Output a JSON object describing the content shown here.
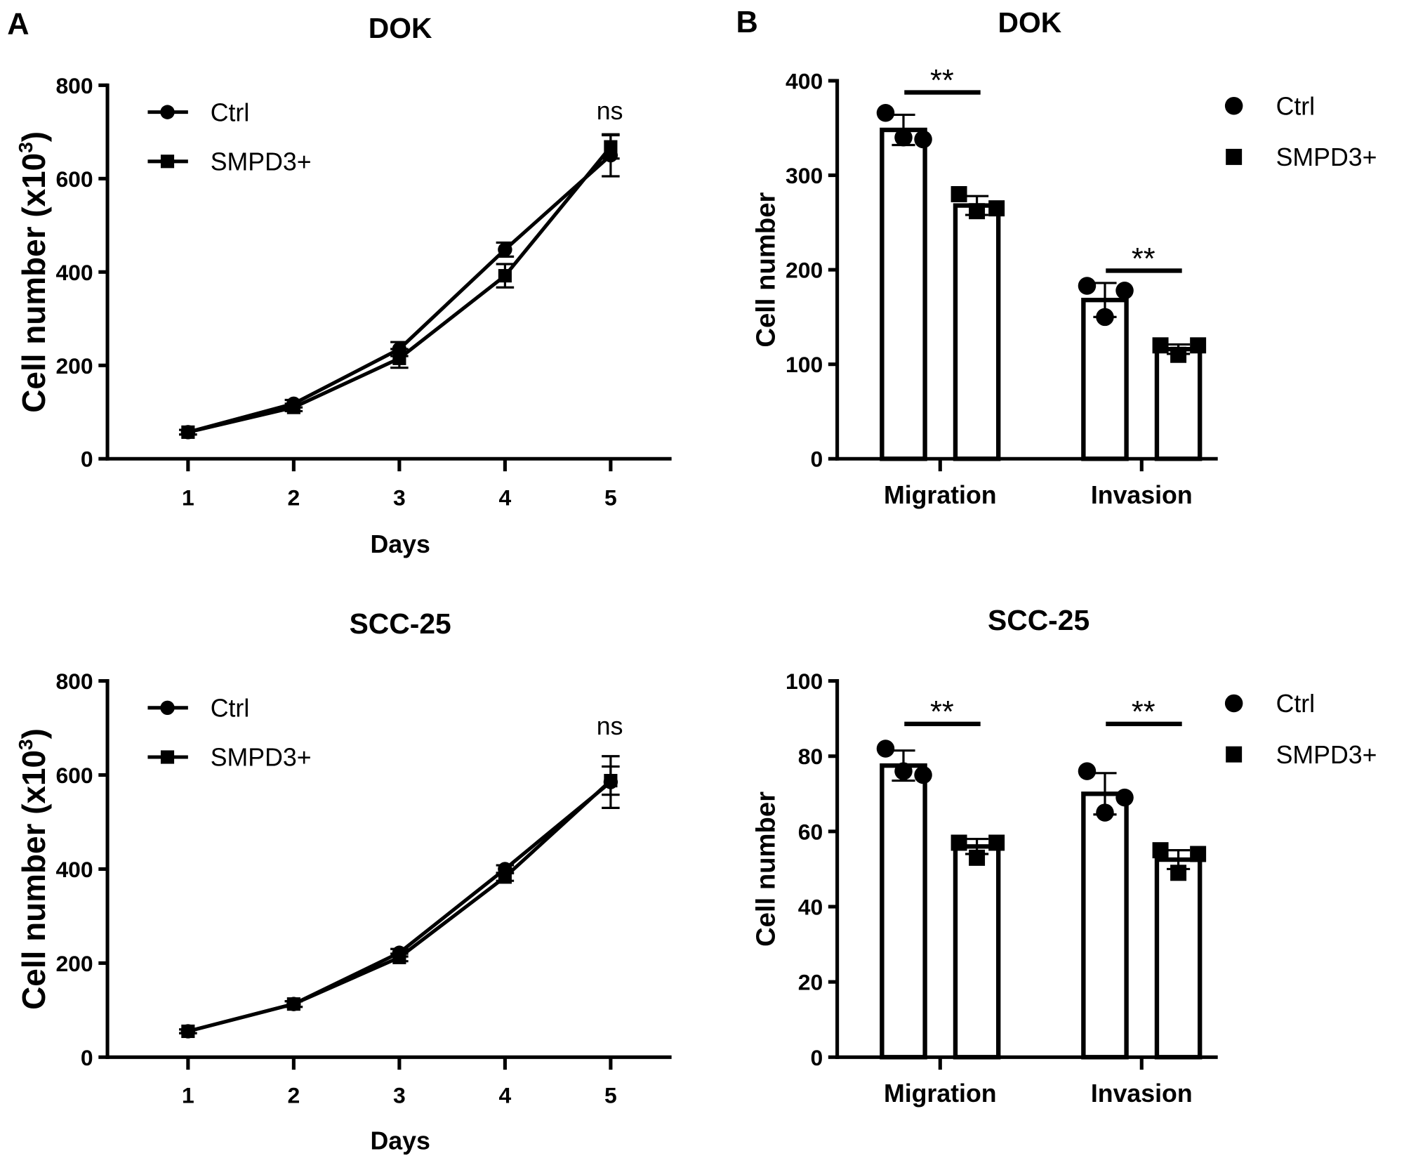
{
  "panel_labels": [
    "A",
    "B"
  ],
  "chart_data": [
    {
      "type": "line",
      "panel": "A",
      "title": "DOK",
      "xlabel": "Days",
      "ylabel": "Cell number (x10",
      "ylabel_sup": "3",
      "ylabel_end": ")",
      "x": [
        1,
        2,
        3,
        4,
        5
      ],
      "ylim": [
        0,
        800
      ],
      "yticks": [
        0,
        200,
        400,
        600,
        800
      ],
      "annotation": "ns",
      "legend_position": "top-left",
      "series": [
        {
          "name": "Ctrl",
          "marker": "circle",
          "values": [
            57,
            118,
            235,
            448,
            650
          ],
          "error": [
            5,
            8,
            15,
            15,
            45
          ]
        },
        {
          "name": "SMPD3+",
          "marker": "square",
          "values": [
            57,
            110,
            215,
            392,
            668
          ],
          "error": [
            5,
            8,
            20,
            25,
            25
          ]
        }
      ]
    },
    {
      "type": "bar",
      "panel": "B",
      "title": "DOK",
      "xlabel": "",
      "ylabel": "Cell number",
      "categories": [
        "Migration",
        "Invasion"
      ],
      "ylim": [
        0,
        400
      ],
      "yticks": [
        0,
        100,
        200,
        300,
        400
      ],
      "significance": [
        "**",
        "**"
      ],
      "legend_position": "right",
      "series": [
        {
          "name": "Ctrl",
          "marker": "circle",
          "values": [
            348,
            168
          ],
          "error": [
            16,
            18
          ],
          "points": [
            [
              366,
              340,
              338
            ],
            [
              183,
              150,
              178
            ]
          ]
        },
        {
          "name": "SMPD3+",
          "marker": "square",
          "values": [
            268,
            116
          ],
          "error": [
            10,
            5
          ],
          "points": [
            [
              280,
              262,
              265
            ],
            [
              120,
              110,
              120
            ]
          ]
        }
      ]
    },
    {
      "type": "line",
      "panel": "",
      "title": "SCC-25",
      "xlabel": "Days",
      "ylabel": "Cell number (x10",
      "ylabel_sup": "3",
      "ylabel_end": ")",
      "x": [
        1,
        2,
        3,
        4,
        5
      ],
      "ylim": [
        0,
        800
      ],
      "yticks": [
        0,
        200,
        400,
        600,
        800
      ],
      "annotation": "ns",
      "legend_position": "top-left",
      "series": [
        {
          "name": "Ctrl",
          "marker": "circle",
          "values": [
            55,
            113,
            222,
            400,
            585
          ],
          "error": [
            4,
            6,
            8,
            8,
            55
          ]
        },
        {
          "name": "SMPD3+",
          "marker": "square",
          "values": [
            55,
            113,
            212,
            383,
            588
          ],
          "error": [
            4,
            6,
            8,
            8,
            30
          ]
        }
      ]
    },
    {
      "type": "bar",
      "panel": "",
      "title": "SCC-25",
      "xlabel": "",
      "ylabel": "Cell number",
      "categories": [
        "Migration",
        "Invasion"
      ],
      "ylim": [
        0,
        100
      ],
      "yticks": [
        0,
        20,
        40,
        60,
        80,
        100
      ],
      "significance": [
        "**",
        "**"
      ],
      "legend_position": "right",
      "series": [
        {
          "name": "Ctrl",
          "marker": "circle",
          "values": [
            77.5,
            70
          ],
          "error": [
            4,
            5.5
          ],
          "points": [
            [
              82,
              76,
              75
            ],
            [
              76,
              65,
              69
            ]
          ]
        },
        {
          "name": "SMPD3+",
          "marker": "square",
          "values": [
            56,
            52.5
          ],
          "error": [
            2,
            2.5
          ],
          "points": [
            [
              57,
              53,
              57
            ],
            [
              55,
              49,
              54
            ]
          ]
        }
      ]
    }
  ]
}
